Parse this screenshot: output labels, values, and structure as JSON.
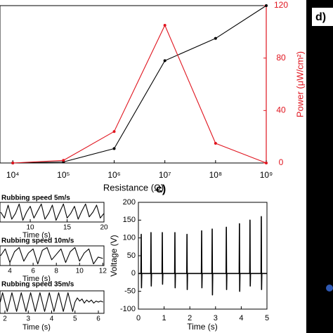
{
  "chart_data": [
    {
      "type": "line",
      "x_label": "Resistance (Ω)",
      "y2_label": "Power (μW/cm²)",
      "x": [
        10000,
        100000,
        1000000,
        10000000,
        100000000,
        1000000000
      ],
      "xlog": true,
      "xlim": [
        5600,
        1000000000
      ],
      "xticks": [
        {
          "value": 10000,
          "label": "10⁴"
        },
        {
          "value": 100000,
          "label": "10⁵"
        },
        {
          "value": 1000000,
          "label": "10⁶"
        },
        {
          "value": 10000000,
          "label": "10⁷"
        },
        {
          "value": 100000000,
          "label": "10⁸"
        },
        {
          "value": 1000000000,
          "label": "10⁹"
        }
      ],
      "y2lim": [
        0,
        120
      ],
      "y2ticks": [
        0,
        40,
        80,
        120
      ],
      "y2color": "#e0141e",
      "series": [
        {
          "color": "#000000",
          "axis": "y2",
          "values": [
            0,
            0.8,
            11,
            78,
            95,
            120
          ]
        },
        {
          "color": "#e0141e",
          "axis": "y2",
          "values": [
            0,
            2,
            24,
            105,
            15,
            0
          ]
        }
      ]
    },
    {
      "type": "line",
      "panel_label": "c)",
      "x_label": "Time (s)",
      "y_label": "Voltage (V)",
      "color": "#000000",
      "x": [
        0,
        0.1,
        0.11,
        0.12,
        0.13,
        0.48,
        0.49,
        0.5,
        0.51,
        0.92,
        0.93,
        0.94,
        0.95,
        1.41,
        1.42,
        1.43,
        1.44,
        1.88,
        1.89,
        1.9,
        1.91,
        2.45,
        2.46,
        2.47,
        2.48,
        2.86,
        2.87,
        2.88,
        2.89,
        3.41,
        3.42,
        3.43,
        3.44,
        3.92,
        3.93,
        3.94,
        3.95,
        4.33,
        4.34,
        4.35,
        4.36,
        4.77,
        4.78,
        4.79,
        4.8,
        5
      ],
      "values": [
        0,
        0,
        110,
        -40,
        0,
        0,
        115,
        -35,
        0,
        0,
        115,
        -30,
        0,
        0,
        115,
        -40,
        0,
        0,
        110,
        -45,
        0,
        0,
        120,
        -40,
        0,
        0,
        125,
        -60,
        0,
        0,
        130,
        -45,
        0,
        0,
        140,
        -50,
        0,
        0,
        150,
        -35,
        0,
        0,
        160,
        -45,
        0,
        0
      ],
      "xlim": [
        0,
        5
      ],
      "xticks": [
        0,
        1,
        2,
        3,
        4,
        5
      ],
      "ylim": [
        -100,
        200
      ],
      "yticks": [
        -100,
        -50,
        0,
        50,
        100,
        150,
        200
      ]
    },
    {
      "type": "line",
      "title": "Rubbing speed 5m/s",
      "x_label": "Time (s)",
      "color": "#000000",
      "x": [
        6,
        6.5,
        7,
        7.5,
        8,
        8.5,
        9,
        9.5,
        10,
        10.5,
        11,
        11.5,
        12,
        12.5,
        13,
        13.5,
        14,
        14.5,
        15,
        15.5,
        16,
        16.5,
        17,
        17.5,
        18,
        18.5,
        19,
        19.5,
        20
      ],
      "values": [
        0.2,
        -0.3,
        0.8,
        -0.4,
        0.1,
        0.9,
        -0.5,
        0.2,
        0.7,
        -0.3,
        0.3,
        0.9,
        -0.4,
        0.1,
        0.8,
        -0.5,
        0.2,
        0.9,
        -0.3,
        0.1,
        0.7,
        -0.4,
        0.3,
        0.9,
        -0.2,
        0.2,
        0.8,
        -0.3,
        0.1
      ],
      "xlim": [
        5.9,
        20
      ],
      "xticks": [
        10,
        15,
        20
      ]
    },
    {
      "type": "line",
      "title": "Rubbing speed 10m/s",
      "x_label": "Time (s)",
      "color": "#000000",
      "x": [
        3.2,
        3.6,
        4.0,
        4.4,
        4.8,
        5.2,
        5.6,
        6.0,
        6.4,
        6.8,
        7.2,
        7.6,
        8.0,
        8.4,
        8.8,
        9.2,
        9.6,
        10.0,
        10.4,
        10.8,
        11.2,
        11.6,
        12.0
      ],
      "values": [
        0.3,
        0.8,
        -0.2,
        0.6,
        0.9,
        -0.1,
        0.5,
        0.8,
        -0.3,
        0.7,
        0.9,
        0,
        0.4,
        0.8,
        -0.2,
        0.6,
        0.9,
        -0.1,
        0.5,
        0.8,
        -0.3,
        0.2,
        0.1
      ],
      "xlim": [
        3.15,
        12.1
      ],
      "xticks": [
        4,
        6,
        8,
        10,
        12
      ]
    },
    {
      "type": "line",
      "title": "Rubbing speed 35m/s",
      "x_label": "Time (s)",
      "color": "#000000",
      "x": [
        1.8,
        1.9,
        2.0,
        2.1,
        2.2,
        2.3,
        2.4,
        2.5,
        2.6,
        2.7,
        2.8,
        2.9,
        3.0,
        3.1,
        3.2,
        3.3,
        3.4,
        3.5,
        3.6,
        3.7,
        3.8,
        3.9,
        4.0,
        4.1,
        4.2,
        4.3,
        4.4,
        4.5,
        4.6,
        4.7,
        4.8,
        4.9,
        5.0,
        5.1,
        5.2,
        5.3,
        5.4,
        5.5,
        5.6,
        5.7,
        5.8,
        5.9,
        6.0,
        6.1,
        6.2
      ],
      "values": [
        0,
        0.9,
        0,
        -0.9,
        0,
        0.9,
        0,
        -0.9,
        0,
        0.9,
        0,
        -0.9,
        0,
        0.9,
        0,
        -0.9,
        0,
        0.9,
        0,
        -0.9,
        0,
        0.9,
        0,
        -0.9,
        0,
        0.9,
        0,
        -0.9,
        0,
        0.9,
        0,
        -0.9,
        0,
        0.4,
        0.1,
        0.3,
        -0.1,
        0.2,
        0,
        0.2,
        -0.1,
        0.1,
        0,
        0.1,
        0
      ],
      "xlim": [
        1.79,
        6.24
      ],
      "xticks": [
        2,
        3,
        4,
        5,
        6
      ]
    }
  ],
  "panel_d": {
    "label": "d)"
  }
}
